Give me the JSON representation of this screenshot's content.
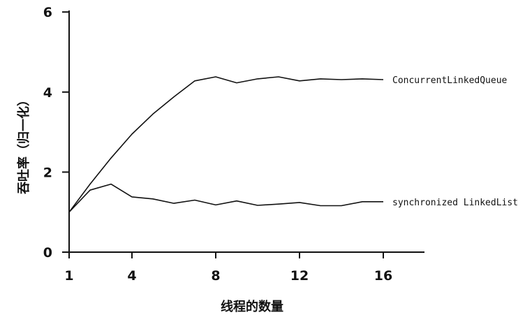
{
  "chart_data": {
    "type": "line",
    "xlabel": "线程的数量",
    "ylabel": "吞吐率（归一化）",
    "xlim": [
      1,
      18
    ],
    "ylim": [
      0,
      6
    ],
    "xticks": [
      1,
      4,
      8,
      12,
      16
    ],
    "yticks": [
      0,
      2,
      4,
      6
    ],
    "grid": false,
    "legend": "inline labels at right end of each line",
    "series": [
      {
        "name": "ConcurrentLinkedQueue",
        "x": [
          1,
          2,
          3,
          4,
          5,
          6,
          7,
          8,
          9,
          10,
          11,
          12,
          13,
          14,
          15,
          16
        ],
        "y": [
          1.0,
          1.7,
          2.35,
          2.95,
          3.45,
          3.88,
          4.28,
          4.38,
          4.23,
          4.33,
          4.38,
          4.28,
          4.33,
          4.31,
          4.33,
          4.31
        ]
      },
      {
        "name": "synchronized LinkedList",
        "x": [
          1,
          2,
          3,
          4,
          5,
          6,
          7,
          8,
          9,
          10,
          11,
          12,
          13,
          14,
          15,
          16
        ],
        "y": [
          1.0,
          1.55,
          1.7,
          1.38,
          1.33,
          1.22,
          1.3,
          1.18,
          1.28,
          1.17,
          1.2,
          1.24,
          1.16,
          1.16,
          1.26,
          1.26
        ]
      }
    ]
  }
}
